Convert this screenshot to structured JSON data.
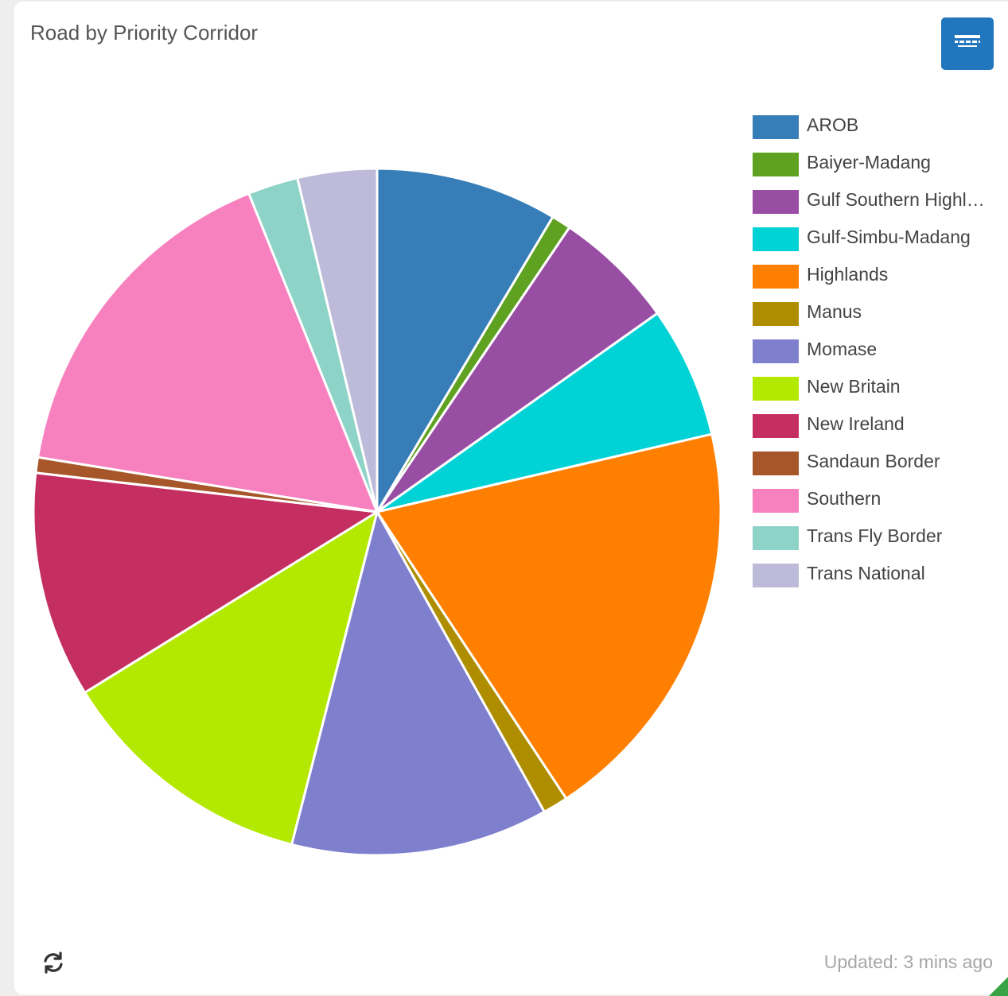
{
  "widget": {
    "title": "Road by Priority Corridor",
    "updated_text": "Updated: 3 mins ago",
    "table_button_icon": "table-icon",
    "refresh_icon": "refresh-icon"
  },
  "chart_data": {
    "type": "pie",
    "title": "Road by Priority Corridor",
    "legend_position": "right",
    "start_angle_deg": 0,
    "direction": "clockwise",
    "slices": [
      {
        "label": "AROB",
        "display_label": "AROB",
        "value": 9.4,
        "color": "#377eb8"
      },
      {
        "label": "Baiyer-Madang",
        "display_label": "Baiyer-Madang",
        "value": 1.0,
        "color": "#5fa121"
      },
      {
        "label": "Gulf Southern Highlands",
        "display_label": "Gulf Southern Highl…",
        "value": 6.3,
        "color": "#984ea3"
      },
      {
        "label": "Gulf-Simbu-Madang",
        "display_label": "Gulf-Simbu-Madang",
        "value": 6.8,
        "color": "#00d2d5"
      },
      {
        "label": "Highlands",
        "display_label": "Highlands",
        "value": 21.3,
        "color": "#ff7f00"
      },
      {
        "label": "Manus",
        "display_label": "Manus",
        "value": 1.3,
        "color": "#af8d00"
      },
      {
        "label": "Momase",
        "display_label": "Momase",
        "value": 13.3,
        "color": "#7f80cd"
      },
      {
        "label": "New Britain",
        "display_label": "New Britain",
        "value": 13.4,
        "color": "#b3e900"
      },
      {
        "label": "New Ireland",
        "display_label": "New Ireland",
        "value": 11.7,
        "color": "#c42e60"
      },
      {
        "label": "Sandaun Border",
        "display_label": "Sandaun Border",
        "value": 0.8,
        "color": "#a65628"
      },
      {
        "label": "Southern",
        "display_label": "Southern",
        "value": 18.0,
        "color": "#f781bf"
      },
      {
        "label": "Trans Fly Border",
        "display_label": "Trans Fly Border",
        "value": 2.6,
        "color": "#8dd3c7"
      },
      {
        "label": "Trans National",
        "display_label": "Trans National",
        "value": 4.1,
        "color": "#bebada"
      }
    ]
  }
}
